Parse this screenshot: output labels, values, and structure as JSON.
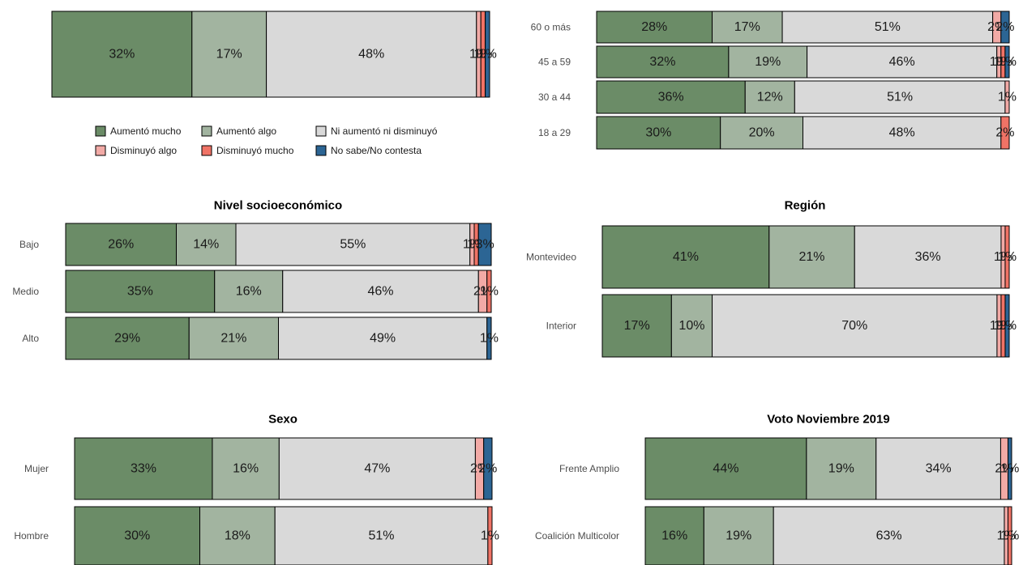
{
  "colors": {
    "aumento_mucho": "#6b8c67",
    "aumento_algo": "#a2b4a0",
    "ni": "#d9d9d9",
    "dism_algo": "#f2aaa6",
    "dism_mucho": "#f07366",
    "nsnc": "#2c6594"
  },
  "legend": [
    {
      "key": "aumento_mucho",
      "label": "Aumentó mucho"
    },
    {
      "key": "aumento_algo",
      "label": "Aumentó algo"
    },
    {
      "key": "ni",
      "label": "Ni aumentó ni disminuyó"
    },
    {
      "key": "dism_algo",
      "label": "Disminuyó algo"
    },
    {
      "key": "dism_mucho",
      "label": "Disminuyó mucho"
    },
    {
      "key": "nsnc",
      "label": "No sabe/No contesta"
    }
  ],
  "chart_data": [
    {
      "id": "total",
      "type": "bar",
      "stacked": true,
      "orientation": "horizontal",
      "title": "",
      "categories": [
        ""
      ],
      "series": [
        {
          "key": "aumento_mucho",
          "values": [
            32
          ]
        },
        {
          "key": "aumento_algo",
          "values": [
            17
          ]
        },
        {
          "key": "ni",
          "values": [
            48
          ]
        },
        {
          "key": "dism_algo",
          "values": [
            1
          ]
        },
        {
          "key": "dism_mucho",
          "values": [
            1
          ]
        },
        {
          "key": "nsnc",
          "values": [
            1
          ]
        }
      ],
      "labels": [
        [
          "32%",
          "17%",
          "48%",
          "1%",
          "1%",
          "1%"
        ]
      ]
    },
    {
      "id": "edad",
      "type": "bar",
      "stacked": true,
      "orientation": "horizontal",
      "title": "",
      "categories": [
        "60 o más",
        "45 a 59",
        "30 a 44",
        "18 a 29"
      ],
      "series": [
        {
          "key": "aumento_mucho",
          "values": [
            28,
            32,
            36,
            30
          ]
        },
        {
          "key": "aumento_algo",
          "values": [
            17,
            19,
            12,
            20
          ]
        },
        {
          "key": "ni",
          "values": [
            51,
            46,
            51,
            48
          ]
        },
        {
          "key": "dism_algo",
          "values": [
            2,
            1,
            1,
            0
          ]
        },
        {
          "key": "dism_mucho",
          "values": [
            0,
            1,
            0,
            2
          ]
        },
        {
          "key": "nsnc",
          "values": [
            2,
            1,
            0,
            0
          ]
        }
      ],
      "labels": [
        [
          "28%",
          "17%",
          "51%",
          "2%",
          "",
          "2%"
        ],
        [
          "32%",
          "19%",
          "46%",
          "1%",
          "1%",
          "1%"
        ],
        [
          "36%",
          "12%",
          "51%",
          "1%",
          "",
          ""
        ],
        [
          "30%",
          "20%",
          "48%",
          "",
          "2%",
          ""
        ]
      ]
    },
    {
      "id": "nse",
      "type": "bar",
      "stacked": true,
      "orientation": "horizontal",
      "title": "Nivel socioeconómico",
      "categories": [
        "Bajo",
        "Medio",
        "Alto"
      ],
      "series": [
        {
          "key": "aumento_mucho",
          "values": [
            26,
            35,
            29
          ]
        },
        {
          "key": "aumento_algo",
          "values": [
            14,
            16,
            21
          ]
        },
        {
          "key": "ni",
          "values": [
            55,
            46,
            49
          ]
        },
        {
          "key": "dism_algo",
          "values": [
            1,
            2,
            0
          ]
        },
        {
          "key": "dism_mucho",
          "values": [
            1,
            1,
            0
          ]
        },
        {
          "key": "nsnc",
          "values": [
            3,
            0,
            1
          ]
        }
      ],
      "labels": [
        [
          "26%",
          "14%",
          "55%",
          "1%",
          "1%",
          "3%"
        ],
        [
          "35%",
          "16%",
          "46%",
          "2%",
          "1%",
          ""
        ],
        [
          "29%",
          "21%",
          "49%",
          "",
          "",
          "1%"
        ]
      ]
    },
    {
      "id": "region",
      "type": "bar",
      "stacked": true,
      "orientation": "horizontal",
      "title": "Región",
      "categories": [
        "Montevideo",
        "Interior"
      ],
      "series": [
        {
          "key": "aumento_mucho",
          "values": [
            41,
            17
          ]
        },
        {
          "key": "aumento_algo",
          "values": [
            21,
            10
          ]
        },
        {
          "key": "ni",
          "values": [
            36,
            70
          ]
        },
        {
          "key": "dism_algo",
          "values": [
            1,
            1
          ]
        },
        {
          "key": "dism_mucho",
          "values": [
            1,
            1
          ]
        },
        {
          "key": "nsnc",
          "values": [
            0,
            1
          ]
        }
      ],
      "labels": [
        [
          "41%",
          "21%",
          "36%",
          "1%",
          "1%",
          ""
        ],
        [
          "17%",
          "10%",
          "70%",
          "1%",
          "1%",
          "1%"
        ]
      ]
    },
    {
      "id": "sexo",
      "type": "bar",
      "stacked": true,
      "orientation": "horizontal",
      "title": "Sexo",
      "categories": [
        "Mujer",
        "Hombre"
      ],
      "series": [
        {
          "key": "aumento_mucho",
          "values": [
            33,
            30
          ]
        },
        {
          "key": "aumento_algo",
          "values": [
            16,
            18
          ]
        },
        {
          "key": "ni",
          "values": [
            47,
            51
          ]
        },
        {
          "key": "dism_algo",
          "values": [
            2,
            0
          ]
        },
        {
          "key": "dism_mucho",
          "values": [
            0,
            1
          ]
        },
        {
          "key": "nsnc",
          "values": [
            2,
            0
          ]
        }
      ],
      "labels": [
        [
          "33%",
          "16%",
          "47%",
          "2%",
          "",
          "2%"
        ],
        [
          "30%",
          "18%",
          "51%",
          "",
          "1%",
          ""
        ]
      ]
    },
    {
      "id": "voto",
      "type": "bar",
      "stacked": true,
      "orientation": "horizontal",
      "title": "Voto Noviembre 2019",
      "categories": [
        "Frente Amplio",
        "Coalición Multicolor"
      ],
      "series": [
        {
          "key": "aumento_mucho",
          "values": [
            44,
            16
          ]
        },
        {
          "key": "aumento_algo",
          "values": [
            19,
            19
          ]
        },
        {
          "key": "ni",
          "values": [
            34,
            63
          ]
        },
        {
          "key": "dism_algo",
          "values": [
            2,
            1
          ]
        },
        {
          "key": "dism_mucho",
          "values": [
            0,
            1
          ]
        },
        {
          "key": "nsnc",
          "values": [
            1,
            0
          ]
        }
      ],
      "labels": [
        [
          "44%",
          "19%",
          "34%",
          "2%",
          "",
          "1%"
        ],
        [
          "16%",
          "19%",
          "63%",
          "1%",
          "1%",
          ""
        ]
      ]
    }
  ]
}
